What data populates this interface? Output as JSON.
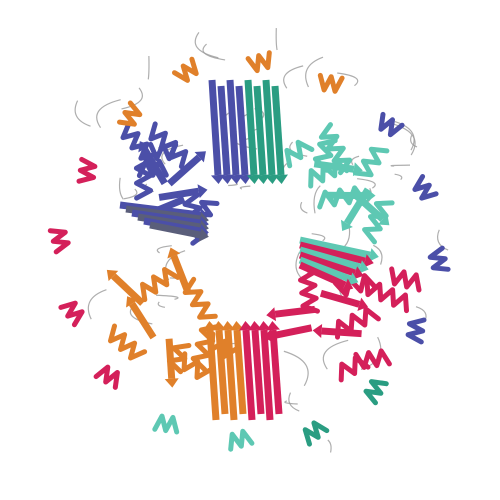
{
  "image": {
    "subject": "protein-assembly-ribbon-render",
    "background": "#ffffff",
    "chain_colors": {
      "navy": "#4b4fa8",
      "teal": "#2a9d82",
      "mint": "#5ec8b3",
      "crimson": "#d4205a",
      "orange": "#e0802a",
      "slate": "#5a5e7a",
      "coil": "#9a9a9a"
    }
  }
}
